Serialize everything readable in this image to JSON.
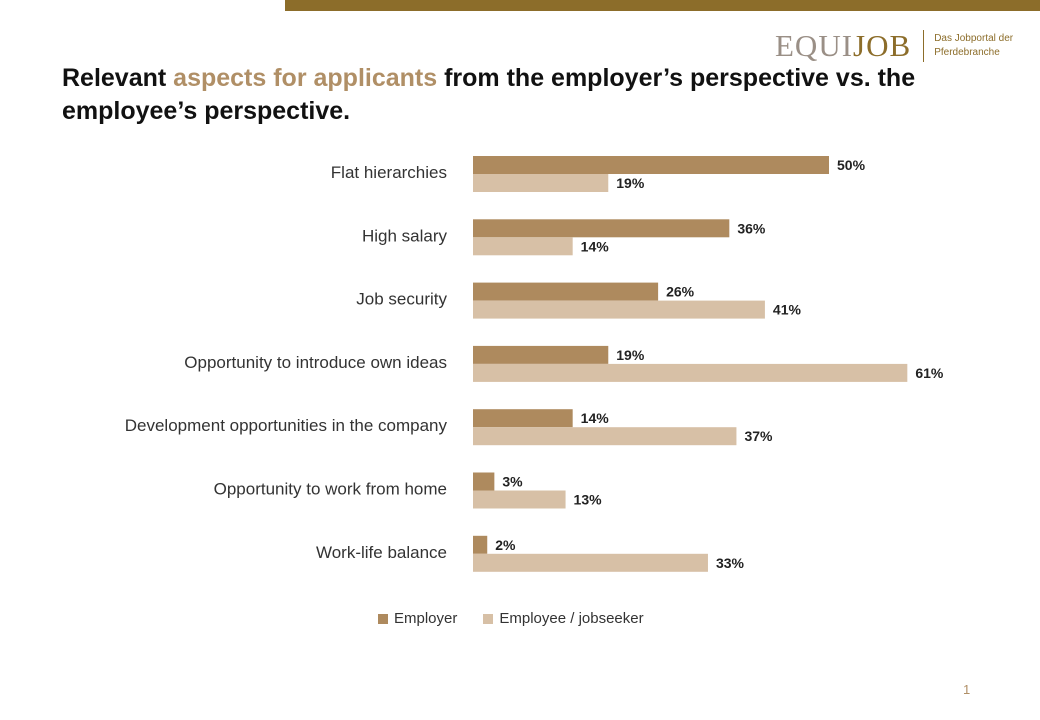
{
  "logo": {
    "brand_part1": "EQUI",
    "brand_part2": "JOB",
    "tagline": "Das Jobportal der Pferdebranche"
  },
  "title": {
    "part1": "Relevant ",
    "accent": "aspects for applicants",
    "part2": " from the employer’s perspective vs. the employee’s perspective."
  },
  "page_number": "1",
  "colors": {
    "employer": "#ae8a5e",
    "employee": "#d7c0a6",
    "accent": "#8c6d2a"
  },
  "chart_data": {
    "type": "bar",
    "orientation": "horizontal",
    "categories": [
      "Flat hierarchies",
      "High salary",
      "Job security",
      "Opportunity to introduce own ideas",
      "Development opportunities in the company",
      "Opportunity to work from home",
      "Work-life balance"
    ],
    "series": [
      {
        "name": "Employer",
        "values": [
          50,
          36,
          26,
          19,
          14,
          3,
          2
        ]
      },
      {
        "name": "Employee / jobseeker",
        "values": [
          19,
          14,
          41,
          61,
          37,
          13,
          33
        ]
      }
    ],
    "value_suffix": "%",
    "xlim": [
      0,
      70
    ],
    "grid": false,
    "legend_position": "bottom"
  }
}
